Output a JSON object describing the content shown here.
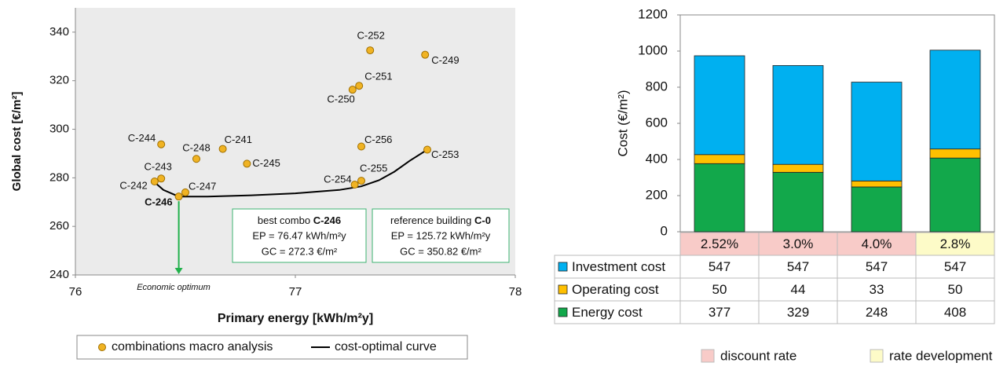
{
  "chart_data": [
    {
      "type": "scatter",
      "x_label": "Primary energy [kWh/m²y]",
      "y_label": "Global cost [€/m²]",
      "xlim": [
        76,
        78
      ],
      "xticks": [
        76,
        77,
        78
      ],
      "ylim": [
        240,
        350
      ],
      "yticks": [
        240,
        260,
        280,
        300,
        320,
        340
      ],
      "background": "#ebebeb",
      "highlight": "C-246",
      "series": [
        {
          "name": "combinations macro analysis",
          "type": "scatter",
          "color": "#f0b323",
          "labels": [
            "C-252",
            "C-249",
            "C-251",
            "C-250",
            "C-244",
            "C-241",
            "C-248",
            "C-245",
            "C-256",
            "C-253",
            "C-243",
            "C-242",
            "C-247",
            "C-246",
            "C-255",
            "C-254"
          ],
          "x": [
            77.34,
            77.59,
            77.29,
            77.26,
            76.39,
            76.67,
            76.55,
            76.78,
            77.3,
            77.6,
            76.39,
            76.36,
            76.5,
            76.47,
            77.3,
            77.27
          ],
          "values": [
            332.5,
            330.7,
            317.9,
            316.3,
            293.8,
            291.9,
            287.8,
            285.8,
            292.9,
            291.6,
            279.7,
            278.5,
            274,
            272.3,
            278.8,
            277.2
          ]
        },
        {
          "name": "cost-optimal curve",
          "type": "line",
          "color": "#000000",
          "x": [
            76.35,
            76.4,
            76.47,
            76.6,
            76.8,
            77.0,
            77.2,
            77.3,
            77.38,
            77.45,
            77.52,
            77.6
          ],
          "values": [
            279,
            275,
            272.3,
            272.3,
            272.8,
            273.6,
            275,
            276.5,
            279,
            282.5,
            287,
            291.6
          ]
        }
      ],
      "annotations": {
        "optimum": "Economic optimum",
        "best": {
          "title": "best combo",
          "id": "C-246",
          "ep": "EP = 76.47 kWh/m²y",
          "gc": "GC = 272.3 €/m²"
        },
        "reference": {
          "title": "reference building",
          "id": "C-0",
          "ep": "EP = 125.72 kWh/m²y",
          "gc": "GC = 350.82 €/m²"
        }
      }
    },
    {
      "type": "bar",
      "stacked": true,
      "y_label": "Cost (€/m²)",
      "ylim": [
        0,
        1200
      ],
      "yticks": [
        0,
        200,
        400,
        600,
        800,
        1000,
        1200
      ],
      "categories": [
        null,
        null,
        null,
        null
      ],
      "series": [
        {
          "name": "Energy cost",
          "color": "#12a84b",
          "values": [
            377,
            329,
            248,
            408
          ]
        },
        {
          "name": "Operating cost",
          "color": "#ffc000",
          "values": [
            50,
            44,
            33,
            50
          ]
        },
        {
          "name": "Investment cost",
          "color": "#00b0f0",
          "values": [
            547,
            547,
            547,
            547
          ]
        }
      ],
      "rates": [
        "2.52%",
        "3.0%",
        "4.0%",
        "2.8%"
      ],
      "rate_colors": [
        "#f8cbc8",
        "#f8cbc8",
        "#f8cbc8",
        "#fdfbc8"
      ],
      "rate_legend": [
        {
          "name": "discount rate",
          "color": "#f8cbc8"
        },
        {
          "name": "rate development",
          "color": "#fdfbc8"
        }
      ]
    }
  ]
}
